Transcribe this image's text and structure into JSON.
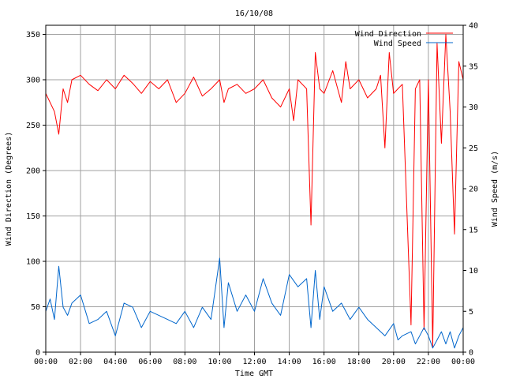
{
  "chart_data": {
    "type": "line",
    "title": "16/10/08",
    "xlabel": "Time GMT",
    "ylabel_left": "Wind Direction (Degrees)",
    "ylabel_right": "Wind Speed (m/s)",
    "x_unit": "hours",
    "xlim": [
      0,
      24
    ],
    "ylim_left": [
      0,
      360
    ],
    "ylim_right": [
      0,
      40
    ],
    "x_ticks": [
      0,
      2,
      4,
      6,
      8,
      10,
      12,
      14,
      16,
      18,
      20,
      22,
      24
    ],
    "x_tick_labels": [
      "00:00",
      "02:00",
      "04:00",
      "06:00",
      "08:00",
      "10:00",
      "12:00",
      "14:00",
      "16:00",
      "18:00",
      "20:00",
      "22:00",
      "00:00"
    ],
    "y_ticks_left": [
      0,
      50,
      100,
      150,
      200,
      250,
      300,
      350
    ],
    "y_ticks_right": [
      0,
      5,
      10,
      15,
      20,
      25,
      30,
      35,
      40
    ],
    "grid": true,
    "legend_position": "top-right",
    "series": [
      {
        "name": "Wind Direction",
        "axis": "left",
        "color": "#ff0000",
        "x": [
          0,
          0.5,
          0.75,
          1,
          1.25,
          1.5,
          2,
          2.5,
          3,
          3.5,
          4,
          4.5,
          5,
          5.5,
          6,
          6.5,
          7,
          7.5,
          8,
          8.5,
          9,
          9.5,
          10,
          10.25,
          10.5,
          11,
          11.5,
          12,
          12.5,
          13,
          13.5,
          14,
          14.25,
          14.5,
          15,
          15.25,
          15.5,
          15.75,
          16,
          16.5,
          17,
          17.25,
          17.5,
          18,
          18.5,
          19,
          19.25,
          19.5,
          19.75,
          20,
          20.25,
          20.5,
          21,
          21.25,
          21.5,
          21.75,
          22,
          22.25,
          22.5,
          22.75,
          23,
          23.25,
          23.5,
          23.75,
          24
        ],
        "y": [
          285,
          265,
          240,
          290,
          275,
          300,
          305,
          295,
          288,
          300,
          290,
          305,
          296,
          285,
          298,
          290,
          300,
          275,
          285,
          303,
          282,
          290,
          300,
          275,
          290,
          295,
          285,
          290,
          300,
          280,
          270,
          290,
          255,
          300,
          290,
          140,
          330,
          290,
          285,
          310,
          275,
          320,
          290,
          300,
          280,
          290,
          305,
          225,
          330,
          285,
          290,
          295,
          30,
          290,
          300,
          25,
          300,
          5,
          340,
          230,
          350,
          265,
          130,
          320,
          300
        ]
      },
      {
        "name": "Wind Speed",
        "axis": "right",
        "color": "#0066cc",
        "x": [
          0,
          0.25,
          0.5,
          0.75,
          1,
          1.25,
          1.5,
          2,
          2.5,
          3,
          3.5,
          4,
          4.5,
          5,
          5.5,
          6,
          6.5,
          7,
          7.5,
          8,
          8.5,
          9,
          9.5,
          10,
          10.25,
          10.5,
          11,
          11.5,
          12,
          12.5,
          13,
          13.5,
          14,
          14.5,
          15,
          15.25,
          15.5,
          15.75,
          16,
          16.5,
          17,
          17.5,
          18,
          18.5,
          19,
          19.5,
          20,
          20.25,
          20.5,
          21,
          21.25,
          21.5,
          21.75,
          22,
          22.25,
          22.5,
          22.75,
          23,
          23.25,
          23.5,
          23.75,
          24
        ],
        "y": [
          5,
          6.5,
          4,
          10.5,
          5.5,
          4.5,
          6,
          7,
          3.5,
          4,
          5,
          2,
          6,
          5.5,
          3,
          5,
          4.5,
          4,
          3.5,
          5,
          3,
          5.5,
          4,
          11.5,
          3,
          8.5,
          5,
          7,
          5,
          9,
          6,
          4.5,
          9.5,
          8,
          9,
          3,
          10,
          4,
          8,
          5,
          6,
          4,
          5.5,
          4,
          3,
          2,
          3.5,
          1.5,
          2,
          2.5,
          1,
          2,
          3,
          2,
          0.5,
          1.5,
          2.5,
          1,
          2.5,
          0.5,
          2,
          3
        ]
      }
    ]
  }
}
